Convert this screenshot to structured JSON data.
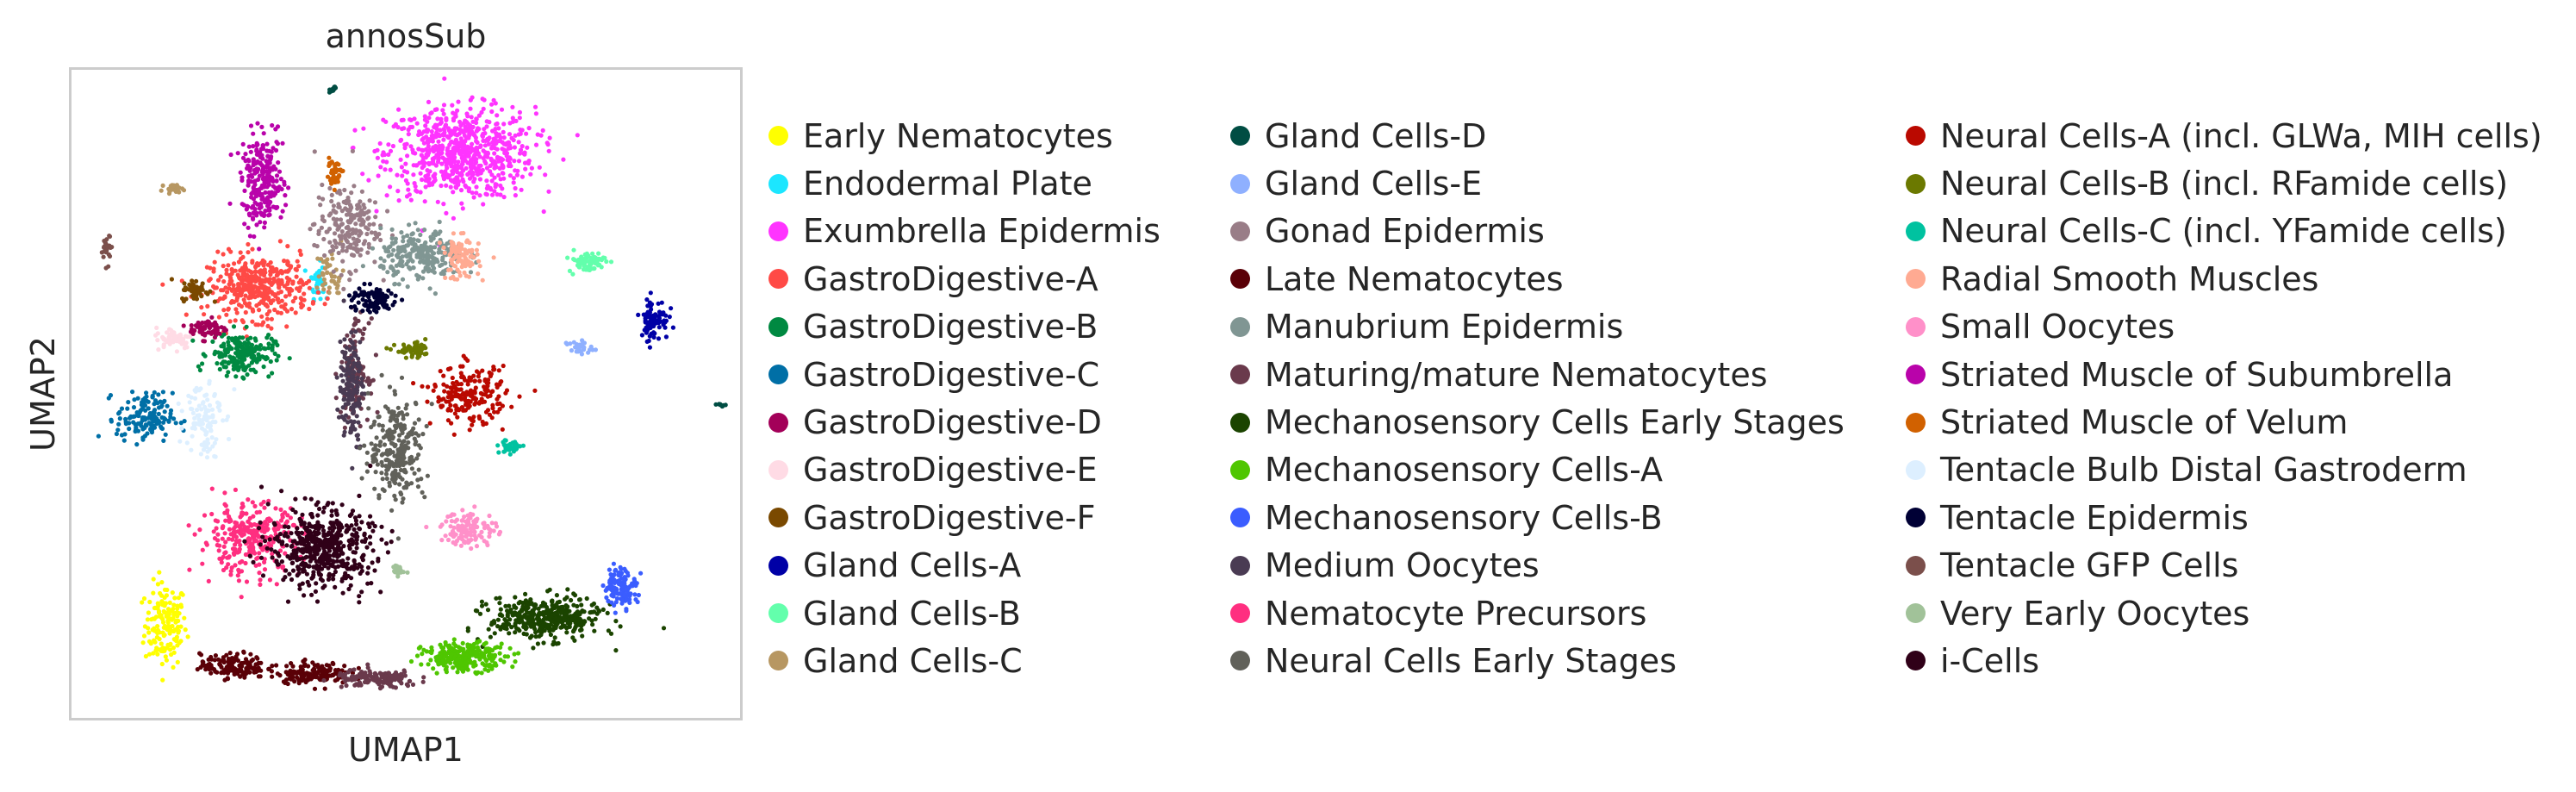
{
  "chart_data": {
    "type": "scatter",
    "title": "annosSub",
    "xlabel": "UMAP1",
    "ylabel": "UMAP2",
    "grid": false,
    "legend_position": "right",
    "legend_title": "",
    "categories": [
      {
        "name": "Early Nematocytes",
        "color": "#ffff00",
        "clusters": [
          [
            -4.2,
            -6.0,
            0.45,
            1.2,
            160
          ]
        ]
      },
      {
        "name": "Endodermal Plate",
        "color": "#1ce6ff",
        "clusters": [
          [
            -0.6,
            4.8,
            0.15,
            0.5,
            40
          ]
        ]
      },
      {
        "name": "Exumbrella Epidermis",
        "color": "#ff34ff",
        "clusters": [
          [
            2.8,
            8.8,
            1.6,
            1.3,
            700
          ]
        ]
      },
      {
        "name": "GastroDigestive-A",
        "color": "#ff4a46",
        "clusters": [
          [
            -2.0,
            4.6,
            1.1,
            0.9,
            400
          ]
        ]
      },
      {
        "name": "GastroDigestive-B",
        "color": "#008941",
        "clusters": [
          [
            -2.4,
            2.5,
            0.7,
            0.6,
            200
          ]
        ]
      },
      {
        "name": "GastroDigestive-C",
        "color": "#006fa6",
        "clusters": [
          [
            -4.7,
            0.5,
            0.6,
            0.7,
            150
          ]
        ]
      },
      {
        "name": "GastroDigestive-D",
        "color": "#a30059",
        "clusters": [
          [
            -3.2,
            3.3,
            0.4,
            0.3,
            60
          ]
        ]
      },
      {
        "name": "GastroDigestive-E",
        "color": "#ffdbe5",
        "clusters": [
          [
            -4.0,
            3.0,
            0.4,
            0.3,
            60
          ]
        ]
      },
      {
        "name": "GastroDigestive-F",
        "color": "#7a4900",
        "clusters": [
          [
            -3.5,
            4.5,
            0.3,
            0.3,
            50
          ]
        ]
      },
      {
        "name": "Gland Cells-A",
        "color": "#0000a6",
        "clusters": [
          [
            7.4,
            3.6,
            0.3,
            0.6,
            80
          ]
        ]
      },
      {
        "name": "Gland Cells-B",
        "color": "#63ffac",
        "clusters": [
          [
            5.8,
            5.4,
            0.4,
            0.3,
            70
          ]
        ]
      },
      {
        "name": "Gland Cells-C",
        "color": "#b79762",
        "clusters": [
          [
            -4.0,
            7.7,
            0.2,
            0.1,
            25
          ],
          [
            -0.3,
            5.0,
            0.3,
            0.7,
            40
          ]
        ]
      },
      {
        "name": "Gland Cells-D",
        "color": "#004d43",
        "clusters": [
          [
            -0.2,
            10.8,
            0.1,
            0.1,
            10
          ],
          [
            9.0,
            0.9,
            0.1,
            0.1,
            8
          ]
        ]
      },
      {
        "name": "Gland Cells-E",
        "color": "#8fb0ff",
        "clusters": [
          [
            5.6,
            2.7,
            0.3,
            0.2,
            30
          ]
        ]
      },
      {
        "name": "Gonad Epidermis",
        "color": "#997d87",
        "clusters": [
          [
            0.1,
            6.5,
            0.7,
            1.2,
            200
          ]
        ]
      },
      {
        "name": "Late Nematocytes",
        "color": "#5a0007",
        "clusters": [
          [
            -2.6,
            -7.3,
            0.7,
            0.35,
            150
          ],
          [
            -0.7,
            -7.5,
            0.8,
            0.3,
            150
          ]
        ]
      },
      {
        "name": "Manubrium Epidermis",
        "color": "#809693",
        "clusters": [
          [
            1.9,
            5.6,
            0.9,
            0.7,
            250
          ]
        ]
      },
      {
        "name": "Maturing/mature Nematocytes",
        "color": "#6a3a4c",
        "clusters": [
          [
            0.8,
            -7.7,
            0.9,
            0.25,
            150
          ],
          [
            0.3,
            2.0,
            0.3,
            1.4,
            120
          ]
        ]
      },
      {
        "name": "Mechanosensory Cells Early Stages",
        "color": "#1b4400",
        "clusters": [
          [
            4.8,
            -5.8,
            1.2,
            0.6,
            400
          ]
        ]
      },
      {
        "name": "Mechanosensory Cells-A",
        "color": "#4fc601",
        "clusters": [
          [
            2.9,
            -7.0,
            0.9,
            0.4,
            250
          ]
        ]
      },
      {
        "name": "Mechanosensory Cells-B",
        "color": "#3b5dff",
        "clusters": [
          [
            6.6,
            -4.8,
            0.35,
            0.55,
            120
          ]
        ]
      },
      {
        "name": "Medium Oocytes",
        "color": "#4a3b53",
        "clusters": [
          [
            0.2,
            1.5,
            0.25,
            1.6,
            150
          ]
        ]
      },
      {
        "name": "Nematocyte Precursors",
        "color": "#ff2f80",
        "clusters": [
          [
            -2.2,
            -3.3,
            1.1,
            1.0,
            300
          ]
        ]
      },
      {
        "name": "Neural Cells Early Stages",
        "color": "#61615a",
        "clusters": [
          [
            1.3,
            -0.5,
            0.6,
            1.5,
            250
          ]
        ]
      },
      {
        "name": "Neural Cells-A (incl. GLWa, MIH cells)",
        "color": "#ba0900",
        "clusters": [
          [
            3.0,
            1.2,
            0.8,
            0.8,
            200
          ]
        ]
      },
      {
        "name": "Neural Cells-B (incl. RFamide cells)",
        "color": "#6b7900",
        "clusters": [
          [
            1.7,
            2.6,
            0.4,
            0.2,
            60
          ]
        ]
      },
      {
        "name": "Neural Cells-C (incl. YFamide cells)",
        "color": "#00c2a0",
        "clusters": [
          [
            4.0,
            -0.4,
            0.25,
            0.2,
            40
          ]
        ]
      },
      {
        "name": "Radial Smooth Muscles",
        "color": "#ffaa92",
        "clusters": [
          [
            2.8,
            5.5,
            0.4,
            0.6,
            100
          ]
        ]
      },
      {
        "name": "Small Oocytes",
        "color": "#ff90c9",
        "clusters": [
          [
            3.0,
            -3.0,
            0.6,
            0.5,
            120
          ]
        ]
      },
      {
        "name": "Striated Muscle of Subumbrella",
        "color": "#b903aa",
        "clusters": [
          [
            -1.9,
            7.9,
            0.45,
            1.3,
            250
          ]
        ]
      },
      {
        "name": "Striated Muscle of Velum",
        "color": "#d16100",
        "clusters": [
          [
            -0.2,
            8.2,
            0.2,
            0.35,
            40
          ]
        ]
      },
      {
        "name": "Tentacle Bulb Distal Gastroderm",
        "color": "#ddefff",
        "clusters": [
          [
            -3.3,
            0.6,
            0.4,
            1.2,
            100
          ]
        ]
      },
      {
        "name": "Tentacle Epidermis",
        "color": "#000035",
        "clusters": [
          [
            0.7,
            4.2,
            0.5,
            0.4,
            100
          ]
        ]
      },
      {
        "name": "Tentacle GFP Cells",
        "color": "#7b4f4b",
        "clusters": [
          [
            -5.6,
            5.8,
            0.1,
            0.4,
            25
          ]
        ]
      },
      {
        "name": "Very Early Oocytes",
        "color": "#a1c299",
        "clusters": [
          [
            1.4,
            -4.3,
            0.2,
            0.25,
            20
          ]
        ]
      },
      {
        "name": "i-Cells",
        "color": "#300018",
        "clusters": [
          [
            -0.5,
            -3.6,
            1.1,
            1.1,
            500
          ]
        ]
      }
    ],
    "xlim": [
      -6.5,
      9.5
    ],
    "ylim": [
      -9.0,
      11.5
    ]
  }
}
